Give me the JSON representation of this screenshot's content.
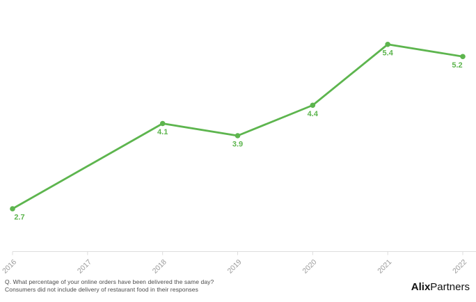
{
  "chart_data": {
    "type": "line",
    "title": "",
    "xlabel": "",
    "ylabel": "",
    "x": [
      2016,
      2018,
      2019,
      2020,
      2021,
      2022
    ],
    "values": [
      2.7,
      4.1,
      3.9,
      4.4,
      5.4,
      5.2
    ],
    "data_labels": [
      "2.7",
      "4.1",
      "3.9",
      "4.4",
      "5.4",
      "5.2"
    ],
    "x_ticks": [
      "2016",
      "2017",
      "2018",
      "2019",
      "2020",
      "2021",
      "2022"
    ],
    "x_range": [
      2016,
      2022
    ],
    "y_axis_visible": false,
    "grid": false,
    "legend": false,
    "line_color": "#5db54e",
    "marker_color": "#5db54e",
    "data_label_color": "#5db54e",
    "axis_color": "#dddddd",
    "tick_label_color": "#999999"
  },
  "footer": {
    "note_line1": "Q. What percentage of your online orders have been delivered the same day?",
    "note_line2": "Consumers did not include delivery of restaurant food in their responses",
    "logo_bold": "Alix",
    "logo_regular": "Partners"
  }
}
